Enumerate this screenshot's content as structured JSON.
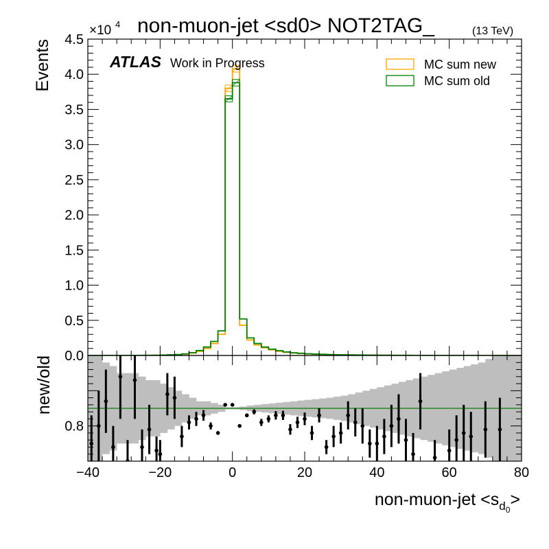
{
  "chart_data": {
    "type": "histogram",
    "title_main": "non-muon-jet <sd0> NOT2TAG_",
    "title_energy": "(13 TeV)",
    "experiment_label": "ATLAS",
    "experiment_sublabel": "Work in Progress",
    "multiplier": "×10",
    "multiplier_exp": "4",
    "ylabel": "Events",
    "xlabel_main": "non-muon-jet <s",
    "xlabel_sub": "d",
    "xlabel_subsub": "0",
    "xlabel_close": ">",
    "ratio_ylabel": "new/old",
    "legend_position": "top-right",
    "xlim": [
      -40,
      80
    ],
    "ylim": [
      0,
      45000
    ],
    "ratio_ylim": [
      0.7,
      1.0
    ],
    "x_tick_labels": [
      "−40",
      "−20",
      "0",
      "20",
      "40",
      "60",
      "80"
    ],
    "y_tick_labels": [
      "0.0",
      "0.5",
      "1.0",
      "1.5",
      "2.0",
      "2.5",
      "3.0",
      "3.5",
      "4.0",
      "4.5"
    ],
    "ratio_tick_labels": [
      "0.8"
    ],
    "bin_edges": [
      -40,
      -38,
      -36,
      -34,
      -32,
      -30,
      -28,
      -26,
      -24,
      -22,
      -20,
      -18,
      -16,
      -14,
      -12,
      -10,
      -8,
      -6,
      -4,
      -2,
      0,
      2,
      4,
      6,
      8,
      10,
      12,
      14,
      16,
      18,
      20,
      22,
      24,
      26,
      28,
      30,
      32,
      34,
      36,
      38,
      40,
      42,
      44,
      46,
      48,
      50,
      52,
      54,
      56,
      58,
      60,
      62,
      64,
      66,
      68,
      70,
      72,
      74,
      76,
      78,
      80
    ],
    "series": [
      {
        "name": "MC sum new",
        "color": "#ffa500",
        "values": [
          5,
          5,
          6,
          7,
          8,
          10,
          12,
          15,
          20,
          30,
          50,
          80,
          120,
          200,
          350,
          600,
          1000,
          1700,
          3000,
          38000,
          40800,
          4300,
          2200,
          1500,
          1100,
          800,
          600,
          450,
          350,
          280,
          220,
          180,
          150,
          120,
          100,
          85,
          70,
          60,
          50,
          42,
          35,
          30,
          25,
          20,
          17,
          14,
          12,
          10,
          8,
          7,
          6,
          5,
          4,
          3,
          3,
          2,
          2,
          2,
          1,
          1
        ]
      },
      {
        "name": "MC sum old",
        "color": "#008000",
        "values": [
          6,
          6,
          7,
          8,
          9,
          11,
          13,
          16,
          22,
          33,
          55,
          90,
          135,
          230,
          400,
          700,
          1200,
          2000,
          3500,
          36500,
          38800,
          5200,
          2500,
          1700,
          1200,
          900,
          680,
          500,
          390,
          310,
          245,
          200,
          165,
          135,
          112,
          95,
          78,
          66,
          55,
          46,
          39,
          33,
          27,
          22,
          18,
          15,
          13,
          11,
          9,
          8,
          7,
          6,
          5,
          4,
          3,
          3,
          2,
          2,
          1,
          1
        ]
      }
    ],
    "ratio": {
      "reference_line": 0.85,
      "reference_color": "#008000",
      "band_color": "#bebebe",
      "band_halfwidth": [
        0.15,
        0.15,
        0.13,
        0.12,
        0.1,
        0.1,
        0.1,
        0.09,
        0.08,
        0.08,
        0.07,
        0.06,
        0.05,
        0.04,
        0.03,
        0.02,
        0.02,
        0.015,
        0.01,
        0.003,
        0.003,
        0.005,
        0.008,
        0.01,
        0.012,
        0.014,
        0.016,
        0.018,
        0.02,
        0.022,
        0.024,
        0.026,
        0.028,
        0.03,
        0.033,
        0.036,
        0.04,
        0.045,
        0.05,
        0.055,
        0.06,
        0.065,
        0.07,
        0.075,
        0.08,
        0.085,
        0.09,
        0.095,
        0.1,
        0.105,
        0.11,
        0.115,
        0.12,
        0.125,
        0.13,
        0.14,
        0.15,
        0.15,
        0.15,
        0.15
      ],
      "points": [
        {
          "x": -39,
          "y": 0.75,
          "err": 0.08
        },
        {
          "x": -37,
          "y": 0.8,
          "err": 0.1
        },
        {
          "x": -35,
          "y": 0.87,
          "err": 0.09
        },
        {
          "x": -33,
          "y": 0.74,
          "err": 0.06
        },
        {
          "x": -31,
          "y": 0.94,
          "err": 0.12
        },
        {
          "x": -29,
          "y": 0.7,
          "err": 0.06
        },
        {
          "x": -27,
          "y": 0.93,
          "err": 0.11
        },
        {
          "x": -25,
          "y": 0.74,
          "err": 0.05
        },
        {
          "x": -23,
          "y": 0.79,
          "err": 0.07
        },
        {
          "x": -21,
          "y": 0.73,
          "err": 0.04
        },
        {
          "x": -20,
          "y": 0.72,
          "err": 0.04
        },
        {
          "x": -18,
          "y": 0.89,
          "err": 0.06
        },
        {
          "x": -16,
          "y": 0.88,
          "err": 0.06
        },
        {
          "x": -14,
          "y": 0.77,
          "err": 0.03
        },
        {
          "x": -12,
          "y": 0.81,
          "err": 0.02
        },
        {
          "x": -10,
          "y": 0.82,
          "err": 0.02
        },
        {
          "x": -8,
          "y": 0.83,
          "err": 0.015
        },
        {
          "x": -6,
          "y": 0.8,
          "err": 0.01
        },
        {
          "x": -4,
          "y": 0.78,
          "err": 0.005
        },
        {
          "x": -2,
          "y": 0.86,
          "err": 0.002
        },
        {
          "x": 0,
          "y": 0.86,
          "err": 0.002
        },
        {
          "x": 2,
          "y": 0.8,
          "err": 0.003
        },
        {
          "x": 4,
          "y": 0.83,
          "err": 0.005
        },
        {
          "x": 6,
          "y": 0.84,
          "err": 0.007
        },
        {
          "x": 8,
          "y": 0.81,
          "err": 0.01
        },
        {
          "x": 10,
          "y": 0.82,
          "err": 0.01
        },
        {
          "x": 12,
          "y": 0.83,
          "err": 0.012
        },
        {
          "x": 14,
          "y": 0.83,
          "err": 0.013
        },
        {
          "x": 16,
          "y": 0.79,
          "err": 0.015
        },
        {
          "x": 18,
          "y": 0.81,
          "err": 0.016
        },
        {
          "x": 20,
          "y": 0.82,
          "err": 0.018
        },
        {
          "x": 22,
          "y": 0.78,
          "err": 0.02
        },
        {
          "x": 24,
          "y": 0.83,
          "err": 0.02
        },
        {
          "x": 26,
          "y": 0.74,
          "err": 0.02
        },
        {
          "x": 28,
          "y": 0.77,
          "err": 0.03
        },
        {
          "x": 30,
          "y": 0.78,
          "err": 0.03
        },
        {
          "x": 32,
          "y": 0.83,
          "err": 0.04
        },
        {
          "x": 34,
          "y": 0.81,
          "err": 0.04
        },
        {
          "x": 36,
          "y": 0.8,
          "err": 0.05
        },
        {
          "x": 38,
          "y": 0.75,
          "err": 0.04
        },
        {
          "x": 40,
          "y": 0.75,
          "err": 0.05
        },
        {
          "x": 42,
          "y": 0.77,
          "err": 0.05
        },
        {
          "x": 44,
          "y": 0.8,
          "err": 0.06
        },
        {
          "x": 46,
          "y": 0.82,
          "err": 0.07
        },
        {
          "x": 48,
          "y": 0.76,
          "err": 0.06
        },
        {
          "x": 50,
          "y": 0.72,
          "err": 0.06
        },
        {
          "x": 52,
          "y": 0.87,
          "err": 0.08
        },
        {
          "x": 56,
          "y": 0.71,
          "err": 0.05
        },
        {
          "x": 60,
          "y": 0.73,
          "err": 0.06
        },
        {
          "x": 62,
          "y": 0.76,
          "err": 0.07
        },
        {
          "x": 64,
          "y": 0.78,
          "err": 0.08
        },
        {
          "x": 66,
          "y": 0.77,
          "err": 0.07
        },
        {
          "x": 70,
          "y": 0.79,
          "err": 0.08
        },
        {
          "x": 74,
          "y": 0.79,
          "err": 0.09
        }
      ]
    }
  }
}
